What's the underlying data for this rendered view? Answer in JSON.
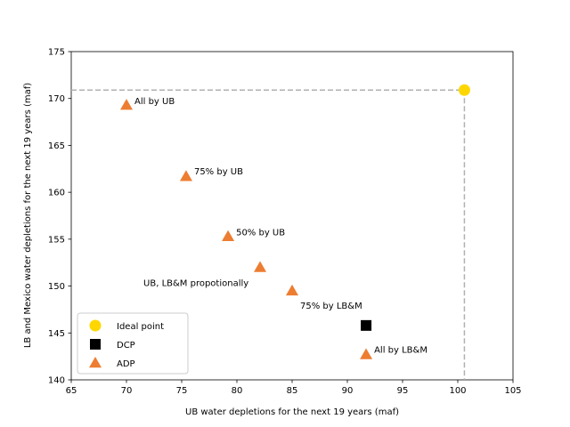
{
  "chart_data": {
    "type": "scatter",
    "title": "",
    "xlabel": "UB water depletions for the next 19 years (maf)",
    "ylabel": "LB and Mexico water depletions for the next 19 years (maf)",
    "xlim": [
      65,
      105
    ],
    "ylim": [
      140,
      175
    ],
    "xticks": [
      65,
      70,
      75,
      80,
      85,
      90,
      95,
      100,
      105
    ],
    "yticks": [
      140,
      145,
      150,
      155,
      160,
      165,
      170,
      175
    ],
    "grid": false,
    "legend_position": "lower-left",
    "reference_lines": {
      "x": 100.6,
      "y": 170.9,
      "style": "dashed",
      "color": "#b0b0b0"
    },
    "series": [
      {
        "name": "Ideal point",
        "marker": "circle",
        "color": "#ffd700",
        "points": [
          {
            "x": 100.6,
            "y": 170.9,
            "label": ""
          }
        ]
      },
      {
        "name": "DCP",
        "marker": "square",
        "color": "#000000",
        "points": [
          {
            "x": 91.7,
            "y": 145.8,
            "label": ""
          }
        ]
      },
      {
        "name": "ADP",
        "marker": "triangle",
        "color": "#ed7d31",
        "points": [
          {
            "x": 70.0,
            "y": 169.3,
            "label": "All by UB"
          },
          {
            "x": 75.4,
            "y": 161.7,
            "label": "75% by UB"
          },
          {
            "x": 79.2,
            "y": 155.3,
            "label": "50% by UB"
          },
          {
            "x": 82.1,
            "y": 152.0,
            "label": "UB, LB&M propotionally"
          },
          {
            "x": 85.0,
            "y": 149.5,
            "label": "75% by LB&M"
          },
          {
            "x": 91.7,
            "y": 142.7,
            "label": "All by LB&M"
          }
        ]
      }
    ]
  }
}
